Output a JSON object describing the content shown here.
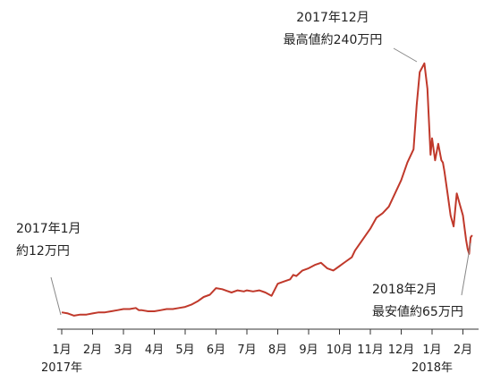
{
  "chart_data": {
    "type": "line",
    "title": "",
    "xlabel": "",
    "ylabel": "",
    "x_tick_labels": [
      "1月",
      "2月",
      "3月",
      "4月",
      "5月",
      "6月",
      "7月",
      "8月",
      "9月",
      "10月",
      "11月",
      "12月",
      "1月",
      "2月"
    ],
    "year_labels": [
      "2017年",
      "2018年"
    ],
    "ylim": [
      0,
      250
    ],
    "grid": false,
    "series": [
      {
        "color": "#c0392b",
        "x": [
          0,
          0.2,
          0.4,
          0.6,
          0.8,
          1.0,
          1.2,
          1.4,
          1.6,
          1.8,
          2.0,
          2.2,
          2.4,
          2.5,
          2.6,
          2.8,
          3.0,
          3.2,
          3.4,
          3.6,
          3.8,
          4.0,
          4.2,
          4.4,
          4.6,
          4.8,
          5.0,
          5.2,
          5.5,
          5.7,
          5.9,
          6.0,
          6.2,
          6.4,
          6.6,
          6.8,
          7.0,
          7.2,
          7.4,
          7.5,
          7.6,
          7.8,
          8.0,
          8.2,
          8.4,
          8.6,
          8.8,
          9.0,
          9.2,
          9.4,
          9.5,
          9.6,
          9.8,
          10.0,
          10.2,
          10.4,
          10.6,
          10.8,
          11.0,
          11.2,
          11.4,
          11.5,
          11.6,
          11.75,
          11.85,
          11.95,
          12.0,
          12.05,
          12.1,
          12.2,
          12.3,
          12.35,
          12.4,
          12.5,
          12.6,
          12.7,
          12.8,
          12.9,
          13.0,
          13.1,
          13.15,
          13.2,
          13.25,
          13.3
        ],
        "y": [
          12,
          11,
          9,
          10,
          10,
          11,
          12,
          12,
          13,
          14,
          15,
          15,
          16,
          14,
          14,
          13,
          13,
          14,
          15,
          15,
          16,
          17,
          19,
          22,
          26,
          28,
          34,
          33,
          30,
          32,
          31,
          32,
          31,
          32,
          30,
          27,
          38,
          40,
          42,
          46,
          45,
          50,
          52,
          55,
          57,
          52,
          50,
          54,
          58,
          62,
          68,
          72,
          80,
          88,
          98,
          102,
          108,
          120,
          132,
          148,
          160,
          200,
          230,
          238,
          215,
          155,
          170,
          160,
          150,
          165,
          150,
          148,
          140,
          120,
          100,
          90,
          120,
          110,
          100,
          78,
          70,
          65,
          80,
          82
        ]
      }
    ],
    "annotations": [
      {
        "text_lines": [
          "2017年12月",
          "最高値約240万円"
        ],
        "x": 11.75,
        "y": 238
      },
      {
        "text_lines": [
          "2017年1月",
          "約12万円"
        ],
        "x": 0,
        "y": 12
      },
      {
        "text_lines": [
          "2018年2月",
          "最安値約65万円"
        ],
        "x": 13.2,
        "y": 65
      }
    ]
  }
}
